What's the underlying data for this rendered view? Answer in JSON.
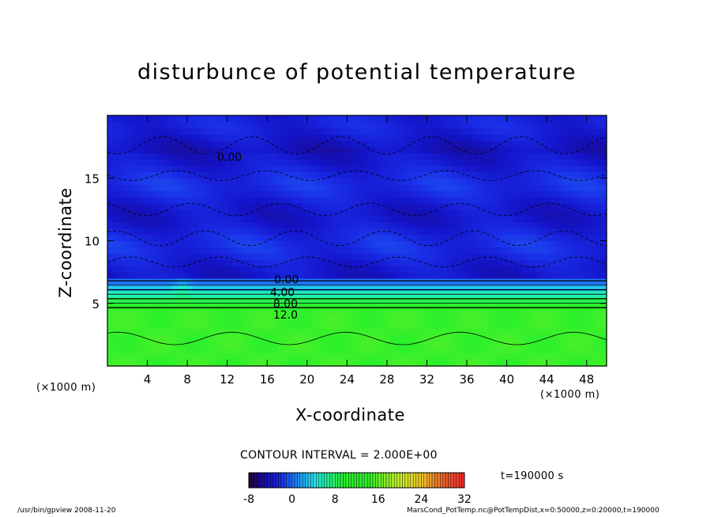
{
  "chart_data": {
    "type": "contour",
    "title": "disturbunce of potential temperature",
    "xlabel": "X-coordinate",
    "ylabel": "Z-coordinate",
    "x_unit_label": "(×1000 m)",
    "x_ticks": [
      4,
      8,
      12,
      16,
      20,
      24,
      28,
      32,
      36,
      40,
      44,
      48
    ],
    "y_ticks": [
      5,
      10,
      15
    ],
    "xlim": [
      0,
      50
    ],
    "ylim": [
      0,
      20
    ],
    "contour_labels": [
      "0.00",
      "4.00",
      "8.00",
      "12.0",
      "0.00"
    ],
    "contour_interval_text": "CONTOUR INTERVAL = 2.000E+00",
    "colorbar": {
      "ticks": [
        "-8",
        "0",
        "8",
        "16",
        "24",
        "32"
      ],
      "range": [
        -8,
        32
      ]
    },
    "time_text": "t=190000 s",
    "field_levels": [
      {
        "z_range": [
          0,
          4.3
        ],
        "value": 14.5
      },
      {
        "z_range": [
          4.3,
          6.8
        ],
        "value": "0 to 14 (sharp gradient)"
      },
      {
        "z_range": [
          6.8,
          19.9
        ],
        "value": -3
      }
    ]
  },
  "footer": {
    "left": "/usr/bin/gpview  2008-11-20",
    "right": "MarsCond_PotTemp.nc@PotTempDist,x=0:50000,z=0:20000,t=190000"
  },
  "colors": {
    "background": "#ffffff",
    "cold": "#1a2ee8",
    "cool": "#1f6cf2",
    "warm_layer": "#2bf02b"
  }
}
